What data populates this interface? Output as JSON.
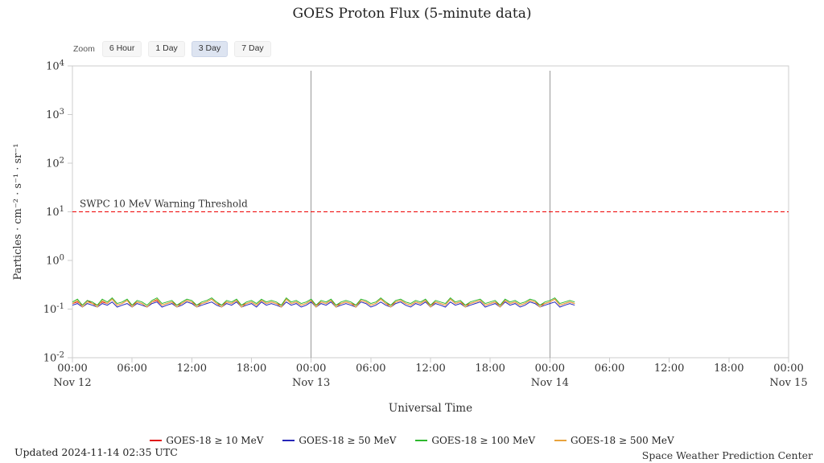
{
  "zoom": {
    "label": "Zoom",
    "options": [
      {
        "label": "6 Hour",
        "selected": false
      },
      {
        "label": "1 Day",
        "selected": false
      },
      {
        "label": "3 Day",
        "selected": true
      },
      {
        "label": "7 Day",
        "selected": false
      }
    ]
  },
  "footer": {
    "updated": "Updated 2024-11-14 02:35 UTC",
    "source": "Space Weather Prediction Center"
  },
  "chart_data": {
    "type": "line",
    "title": "GOES Proton Flux (5-minute data)",
    "xlabel": "Universal Time",
    "ylabel": "Particles · cm⁻² · s⁻¹ · sr⁻¹",
    "y_scale": "log",
    "ylim": [
      0.01,
      10000
    ],
    "ylim_exponents": [
      -2,
      4
    ],
    "y_tick_exponents": [
      4,
      3,
      2,
      1,
      0,
      -1,
      -2
    ],
    "x_range_hours": 72,
    "x_tick_interval_hours": 6,
    "x_tick_labels": [
      "00:00",
      "06:00",
      "12:00",
      "18:00",
      "00:00",
      "06:00",
      "12:00",
      "18:00",
      "00:00",
      "06:00",
      "12:00",
      "18:00",
      "00:00"
    ],
    "date_labels": [
      {
        "label": "Nov 12",
        "hour": 0
      },
      {
        "label": "Nov 13",
        "hour": 24
      },
      {
        "label": "Nov 14",
        "hour": 48
      },
      {
        "label": "Nov 15",
        "hour": 72
      }
    ],
    "day_boundaries_hours": [
      24,
      48
    ],
    "grid": false,
    "legend_position": "bottom",
    "threshold": {
      "label": "SWPC 10 MeV Warning Threshold",
      "value": 10,
      "color": "#ee0000"
    },
    "x_start_hour": 0,
    "x_step_hours": 0.5,
    "series": [
      {
        "name": "GOES-18 ≥ 10 MeV",
        "color": "#e01616",
        "values": [
          0.13,
          0.14,
          0.12,
          0.15,
          0.13,
          0.12,
          0.14,
          0.13,
          0.16,
          0.12,
          0.13,
          0.15,
          0.12,
          0.14,
          0.13,
          0.11,
          0.14,
          0.15,
          0.12,
          0.13,
          0.14,
          0.12,
          0.13,
          0.15,
          0.14,
          0.12,
          0.13,
          0.14,
          0.16,
          0.13,
          0.12,
          0.14,
          0.13,
          0.15,
          0.12,
          0.13,
          0.14,
          0.12,
          0.15,
          0.13,
          0.14,
          0.13,
          0.12,
          0.16,
          0.13,
          0.14,
          0.12,
          0.13,
          0.15,
          0.12,
          0.14,
          0.13,
          0.15,
          0.12,
          0.13,
          0.14,
          0.13,
          0.12,
          0.15,
          0.14,
          0.12,
          0.13,
          0.16,
          0.13,
          0.12,
          0.14,
          0.15,
          0.13,
          0.12,
          0.14,
          0.13,
          0.15,
          0.12,
          0.14,
          0.13,
          0.12,
          0.16,
          0.13,
          0.14,
          0.12,
          0.13,
          0.14,
          0.15,
          0.12,
          0.13,
          0.14,
          0.12,
          0.15,
          0.13,
          0.14,
          0.12,
          0.13,
          0.15,
          0.14,
          0.12,
          0.13,
          0.14,
          0.16,
          0.12,
          0.13,
          0.14,
          0.13
        ]
      },
      {
        "name": "GOES-18 ≥ 50 MeV",
        "color": "#2626b8",
        "values": [
          0.12,
          0.13,
          0.11,
          0.13,
          0.12,
          0.11,
          0.13,
          0.12,
          0.14,
          0.11,
          0.12,
          0.13,
          0.11,
          0.13,
          0.12,
          0.11,
          0.13,
          0.14,
          0.11,
          0.12,
          0.13,
          0.11,
          0.12,
          0.14,
          0.13,
          0.11,
          0.12,
          0.13,
          0.14,
          0.12,
          0.11,
          0.13,
          0.12,
          0.14,
          0.11,
          0.12,
          0.13,
          0.11,
          0.14,
          0.12,
          0.13,
          0.12,
          0.11,
          0.14,
          0.12,
          0.13,
          0.11,
          0.12,
          0.14,
          0.11,
          0.13,
          0.12,
          0.14,
          0.11,
          0.12,
          0.13,
          0.12,
          0.11,
          0.14,
          0.13,
          0.11,
          0.12,
          0.14,
          0.12,
          0.11,
          0.13,
          0.14,
          0.12,
          0.11,
          0.13,
          0.12,
          0.14,
          0.11,
          0.13,
          0.12,
          0.11,
          0.14,
          0.12,
          0.13,
          0.11,
          0.12,
          0.13,
          0.14,
          0.11,
          0.12,
          0.13,
          0.11,
          0.14,
          0.12,
          0.13,
          0.11,
          0.12,
          0.14,
          0.13,
          0.11,
          0.12,
          0.13,
          0.14,
          0.11,
          0.12,
          0.13,
          0.12
        ]
      },
      {
        "name": "GOES-18 ≥ 100 MeV",
        "color": "#2eb82e",
        "values": [
          0.14,
          0.16,
          0.12,
          0.15,
          0.14,
          0.12,
          0.16,
          0.14,
          0.17,
          0.13,
          0.14,
          0.16,
          0.12,
          0.15,
          0.14,
          0.12,
          0.15,
          0.17,
          0.13,
          0.14,
          0.15,
          0.12,
          0.14,
          0.16,
          0.15,
          0.12,
          0.14,
          0.15,
          0.17,
          0.14,
          0.12,
          0.15,
          0.14,
          0.16,
          0.12,
          0.14,
          0.15,
          0.13,
          0.16,
          0.14,
          0.15,
          0.14,
          0.12,
          0.17,
          0.14,
          0.15,
          0.13,
          0.14,
          0.16,
          0.12,
          0.15,
          0.14,
          0.16,
          0.12,
          0.14,
          0.15,
          0.14,
          0.12,
          0.16,
          0.15,
          0.13,
          0.14,
          0.17,
          0.14,
          0.12,
          0.15,
          0.16,
          0.14,
          0.13,
          0.15,
          0.14,
          0.16,
          0.12,
          0.15,
          0.14,
          0.13,
          0.17,
          0.14,
          0.15,
          0.12,
          0.14,
          0.15,
          0.16,
          0.13,
          0.14,
          0.15,
          0.12,
          0.16,
          0.14,
          0.15,
          0.13,
          0.14,
          0.16,
          0.15,
          0.12,
          0.14,
          0.15,
          0.17,
          0.13,
          0.14,
          0.15,
          0.14
        ]
      },
      {
        "name": "GOES-18 ≥ 500 MeV",
        "color": "#e8a33d",
        "values": [
          0.13,
          0.15,
          0.11,
          0.14,
          0.13,
          0.11,
          0.15,
          0.13,
          0.16,
          0.12,
          0.13,
          0.15,
          0.11,
          0.14,
          0.13,
          0.11,
          0.14,
          0.16,
          0.12,
          0.13,
          0.14,
          0.11,
          0.13,
          0.15,
          0.14,
          0.11,
          0.13,
          0.14,
          0.16,
          0.13,
          0.11,
          0.14,
          0.13,
          0.15,
          0.11,
          0.13,
          0.14,
          0.12,
          0.15,
          0.13,
          0.14,
          0.13,
          0.11,
          0.16,
          0.13,
          0.14,
          0.12,
          0.13,
          0.15,
          0.11,
          0.14,
          0.13,
          0.15,
          0.11,
          0.13,
          0.14,
          0.13,
          0.11,
          0.15,
          0.14,
          0.12,
          0.13,
          0.16,
          0.13,
          0.11,
          0.14,
          0.15,
          0.13,
          0.12,
          0.14,
          0.13,
          0.15,
          0.11,
          0.14,
          0.13,
          0.12,
          0.16,
          0.13,
          0.14,
          0.11,
          0.13,
          0.14,
          0.15,
          0.12,
          0.13,
          0.14,
          0.11,
          0.15,
          0.13,
          0.14,
          0.12,
          0.13,
          0.15,
          0.14,
          0.11,
          0.13,
          0.14,
          0.16,
          0.12,
          0.13,
          0.14,
          0.13
        ]
      }
    ]
  }
}
